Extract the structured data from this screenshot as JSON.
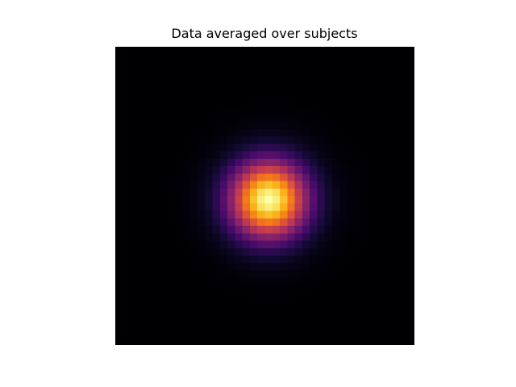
{
  "chart_data": {
    "type": "heatmap",
    "title": "Data averaged over subjects",
    "xlabel": "",
    "ylabel": "",
    "colormap": "inferno",
    "grid": false,
    "colorbar": false,
    "axes_visible": false,
    "rows": 40,
    "cols": 40,
    "distribution": "gaussian",
    "peak_row": 20,
    "peak_col": 20,
    "sigma": 3.6,
    "max_value": 1.0,
    "min_value": 0.0
  }
}
